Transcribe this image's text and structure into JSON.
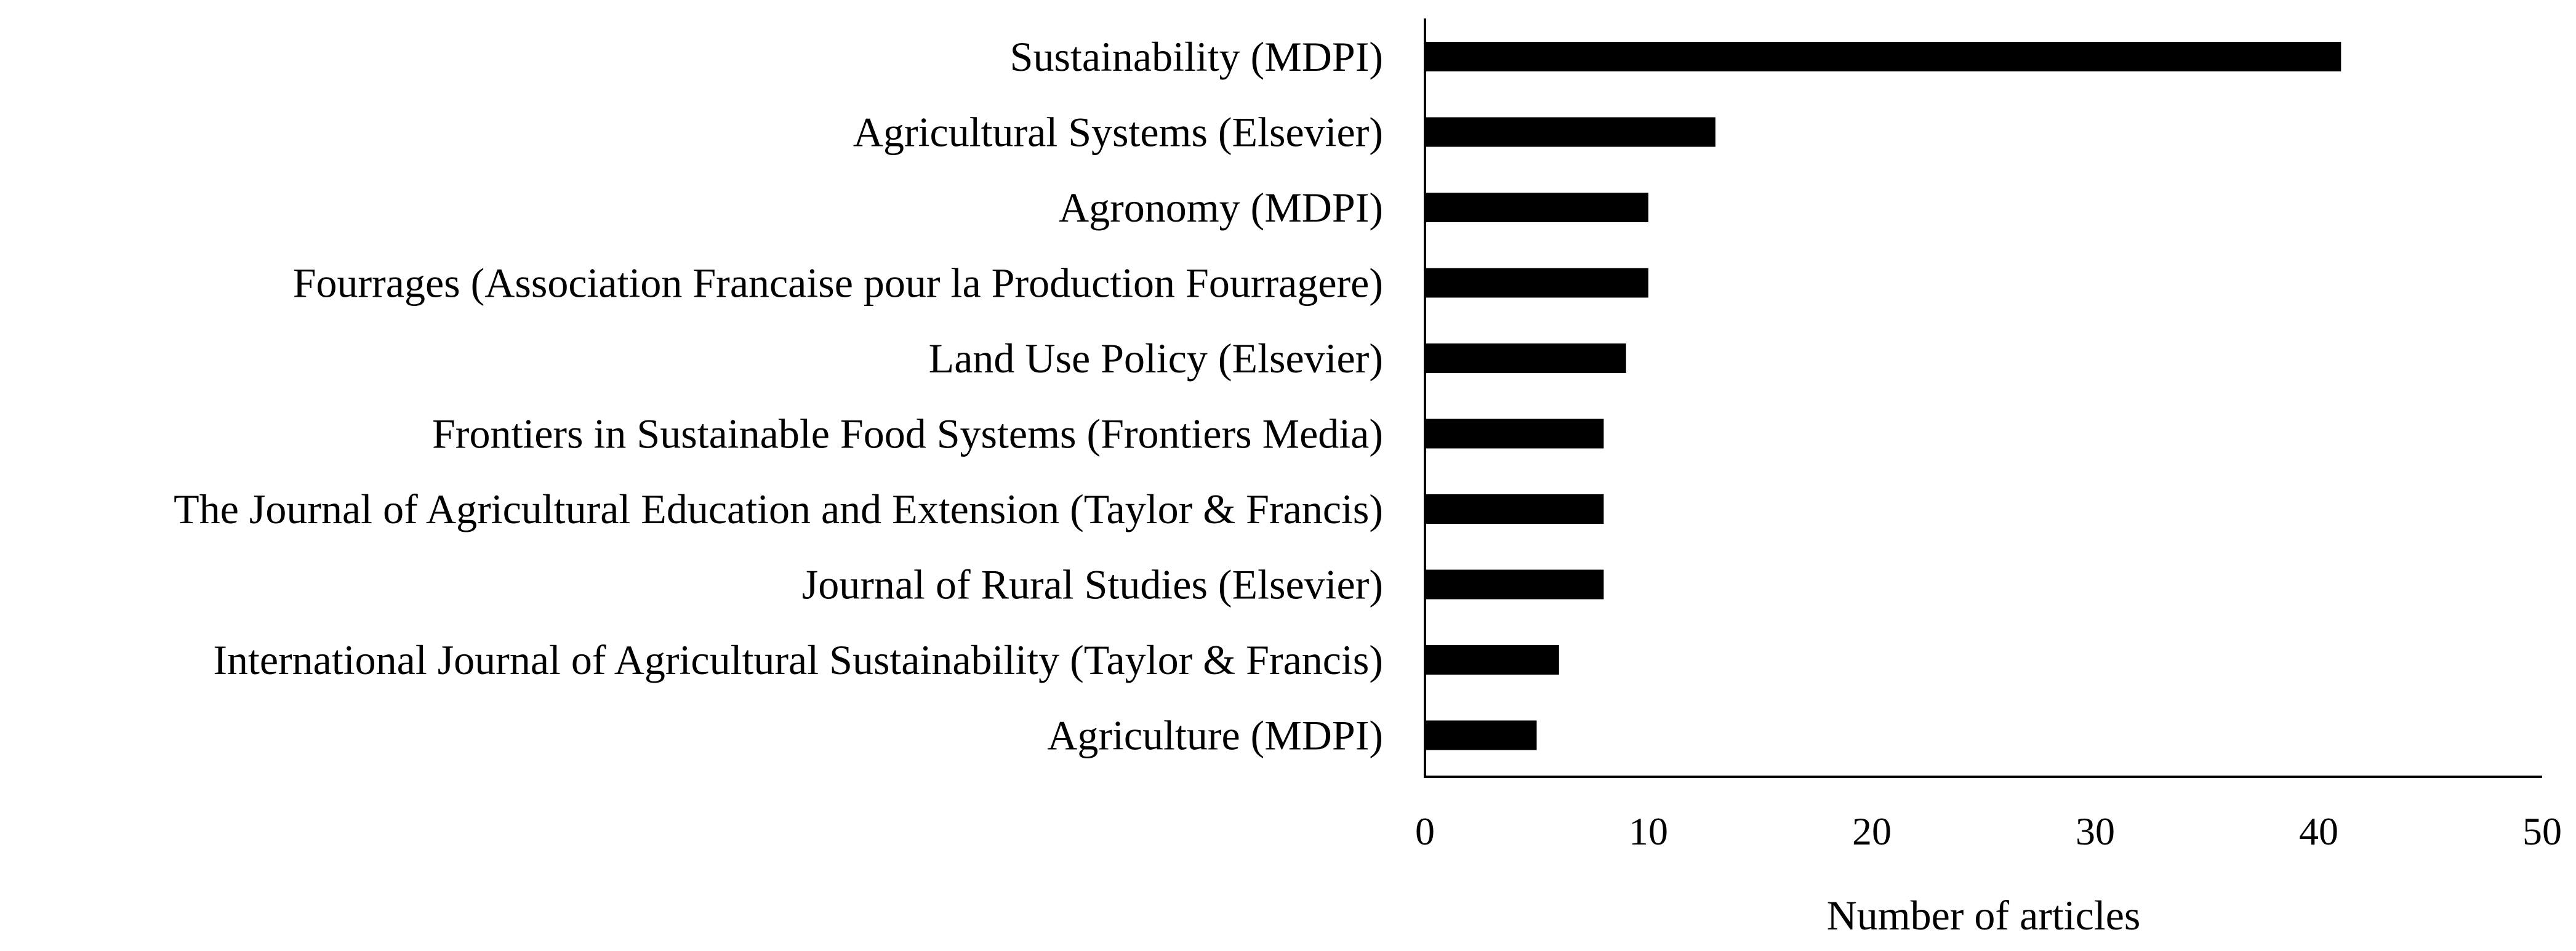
{
  "chart_data": {
    "type": "bar",
    "orientation": "horizontal",
    "categories": [
      "Sustainability (MDPI)",
      "Agricultural Systems (Elsevier)",
      "Agronomy (MDPI)",
      "Fourrages (Association Francaise pour la Production Fourragere)",
      "Land Use Policy (Elsevier)",
      "Frontiers in Sustainable Food Systems (Frontiers Media)",
      "The Journal of Agricultural Education and Extension (Taylor & Francis)",
      "Journal of Rural Studies (Elsevier)",
      "International Journal of Agricultural Sustainability (Taylor & Francis)",
      "Agriculture (MDPI)"
    ],
    "values": [
      41,
      13,
      10,
      10,
      9,
      8,
      8,
      8,
      6,
      5
    ],
    "title": "",
    "xlabel": "Number of articles",
    "ylabel": "",
    "xlim": [
      0,
      50
    ],
    "xticks": [
      0,
      10,
      20,
      30,
      40,
      50
    ],
    "grid": false,
    "legend": "none",
    "bar_color": "#000000"
  }
}
